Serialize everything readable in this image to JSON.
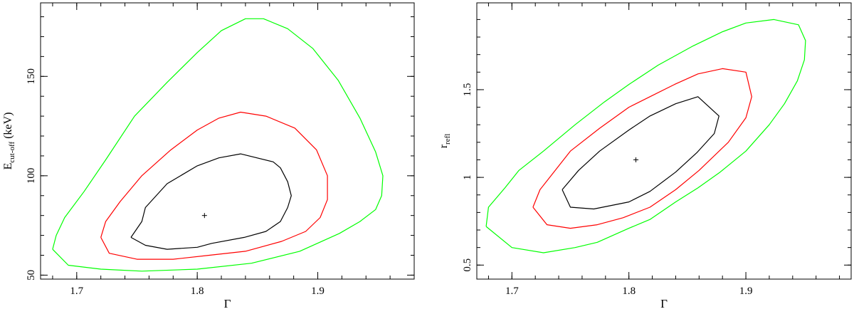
{
  "chart_data": [
    {
      "type": "contour",
      "title": "",
      "xlabel": "Γ",
      "ylabel_main": "E",
      "ylabel_sub": "cut-off",
      "ylabel_unit": " (keV)",
      "xlim": [
        1.67,
        1.98
      ],
      "ylim": [
        48,
        187
      ],
      "xticks": [
        1.7,
        1.8,
        1.9
      ],
      "xtick_labels": [
        "1.7",
        "1.8",
        "1.9"
      ],
      "yticks": [
        50,
        100,
        150
      ],
      "ytick_labels": [
        "50",
        "100",
        "150"
      ],
      "best_fit": [
        1.806,
        80
      ],
      "contours": [
        {
          "color": "#000000",
          "points": [
            [
              1.745,
              69
            ],
            [
              1.754,
              77
            ],
            [
              1.757,
              84
            ],
            [
              1.775,
              96
            ],
            [
              1.8,
              105
            ],
            [
              1.818,
              109
            ],
            [
              1.836,
              111
            ],
            [
              1.863,
              107
            ],
            [
              1.869,
              104
            ],
            [
              1.875,
              97
            ],
            [
              1.878,
              90
            ],
            [
              1.875,
              84
            ],
            [
              1.869,
              77
            ],
            [
              1.857,
              72
            ],
            [
              1.839,
              69
            ],
            [
              1.812,
              66
            ],
            [
              1.8,
              64
            ],
            [
              1.775,
              63
            ],
            [
              1.757,
              65
            ],
            [
              1.745,
              69
            ]
          ]
        },
        {
          "color": "#ff0000",
          "points": [
            [
              1.72,
              69
            ],
            [
              1.724,
              77
            ],
            [
              1.736,
              87
            ],
            [
              1.754,
              100
            ],
            [
              1.778,
              113
            ],
            [
              1.8,
              123
            ],
            [
              1.818,
              129
            ],
            [
              1.836,
              132
            ],
            [
              1.857,
              130
            ],
            [
              1.881,
              124
            ],
            [
              1.899,
              113
            ],
            [
              1.908,
              100
            ],
            [
              1.908,
              88
            ],
            [
              1.902,
              79
            ],
            [
              1.89,
              72
            ],
            [
              1.87,
              67
            ],
            [
              1.84,
              62
            ],
            [
              1.81,
              60
            ],
            [
              1.78,
              58
            ],
            [
              1.75,
              58
            ],
            [
              1.727,
              61
            ],
            [
              1.72,
              69
            ]
          ]
        },
        {
          "color": "#00ff00",
          "points": [
            [
              1.68,
              63
            ],
            [
              1.683,
              70
            ],
            [
              1.69,
              79
            ],
            [
              1.706,
              92
            ],
            [
              1.724,
              108
            ],
            [
              1.748,
              130
            ],
            [
              1.775,
              147
            ],
            [
              1.8,
              162
            ],
            [
              1.82,
              173
            ],
            [
              1.84,
              179
            ],
            [
              1.855,
              179
            ],
            [
              1.875,
              174
            ],
            [
              1.896,
              164
            ],
            [
              1.917,
              148
            ],
            [
              1.935,
              129
            ],
            [
              1.948,
              112
            ],
            [
              1.954,
              100
            ],
            [
              1.953,
              90
            ],
            [
              1.948,
              83
            ],
            [
              1.935,
              77
            ],
            [
              1.918,
              71
            ],
            [
              1.885,
              62
            ],
            [
              1.845,
              56
            ],
            [
              1.8,
              53
            ],
            [
              1.754,
              52
            ],
            [
              1.72,
              53
            ],
            [
              1.693,
              55
            ],
            [
              1.68,
              63
            ]
          ]
        }
      ]
    },
    {
      "type": "contour",
      "title": "",
      "xlabel": "Γ",
      "ylabel_main": "r",
      "ylabel_sub": "refl",
      "ylabel_unit": "",
      "xlim": [
        1.67,
        1.99
      ],
      "ylim": [
        0.42,
        1.995
      ],
      "xticks": [
        1.7,
        1.8,
        1.9
      ],
      "xtick_labels": [
        "1.7",
        "1.8",
        "1.9"
      ],
      "yticks": [
        0.5,
        1,
        1.5
      ],
      "ytick_labels": [
        "0.5",
        "1",
        "1.5"
      ],
      "best_fit": [
        1.806,
        1.1
      ],
      "contours": [
        {
          "color": "#000000",
          "points": [
            [
              1.743,
              0.93
            ],
            [
              1.757,
              1.04
            ],
            [
              1.775,
              1.15
            ],
            [
              1.8,
              1.27
            ],
            [
              1.818,
              1.35
            ],
            [
              1.84,
              1.42
            ],
            [
              1.859,
              1.46
            ],
            [
              1.877,
              1.35
            ],
            [
              1.873,
              1.25
            ],
            [
              1.858,
              1.14
            ],
            [
              1.84,
              1.03
            ],
            [
              1.818,
              0.92
            ],
            [
              1.8,
              0.86
            ],
            [
              1.77,
              0.82
            ],
            [
              1.75,
              0.83
            ],
            [
              1.743,
              0.93
            ]
          ]
        },
        {
          "color": "#ff0000",
          "points": [
            [
              1.718,
              0.83
            ],
            [
              1.724,
              0.93
            ],
            [
              1.75,
              1.15
            ],
            [
              1.775,
              1.28
            ],
            [
              1.8,
              1.4
            ],
            [
              1.818,
              1.46
            ],
            [
              1.839,
              1.53
            ],
            [
              1.859,
              1.59
            ],
            [
              1.88,
              1.62
            ],
            [
              1.9,
              1.6
            ],
            [
              1.905,
              1.46
            ],
            [
              1.9,
              1.34
            ],
            [
              1.885,
              1.2
            ],
            [
              1.86,
              1.04
            ],
            [
              1.84,
              0.93
            ],
            [
              1.818,
              0.83
            ],
            [
              1.795,
              0.77
            ],
            [
              1.773,
              0.73
            ],
            [
              1.75,
              0.71
            ],
            [
              1.73,
              0.73
            ],
            [
              1.718,
              0.83
            ]
          ]
        },
        {
          "color": "#00ff00",
          "points": [
            [
              1.678,
              0.72
            ],
            [
              1.68,
              0.83
            ],
            [
              1.694,
              0.94
            ],
            [
              1.706,
              1.04
            ],
            [
              1.727,
              1.15
            ],
            [
              1.754,
              1.3
            ],
            [
              1.779,
              1.43
            ],
            [
              1.8,
              1.53
            ],
            [
              1.825,
              1.64
            ],
            [
              1.855,
              1.75
            ],
            [
              1.88,
              1.83
            ],
            [
              1.9,
              1.88
            ],
            [
              1.924,
              1.9
            ],
            [
              1.945,
              1.87
            ],
            [
              1.951,
              1.78
            ],
            [
              1.95,
              1.67
            ],
            [
              1.944,
              1.55
            ],
            [
              1.933,
              1.42
            ],
            [
              1.92,
              1.3
            ],
            [
              1.9,
              1.15
            ],
            [
              1.878,
              1.03
            ],
            [
              1.859,
              0.94
            ],
            [
              1.84,
              0.86
            ],
            [
              1.818,
              0.76
            ],
            [
              1.8,
              0.71
            ],
            [
              1.773,
              0.63
            ],
            [
              1.754,
              0.6
            ],
            [
              1.727,
              0.57
            ],
            [
              1.7,
              0.6
            ],
            [
              1.678,
              0.72
            ]
          ]
        }
      ]
    }
  ]
}
